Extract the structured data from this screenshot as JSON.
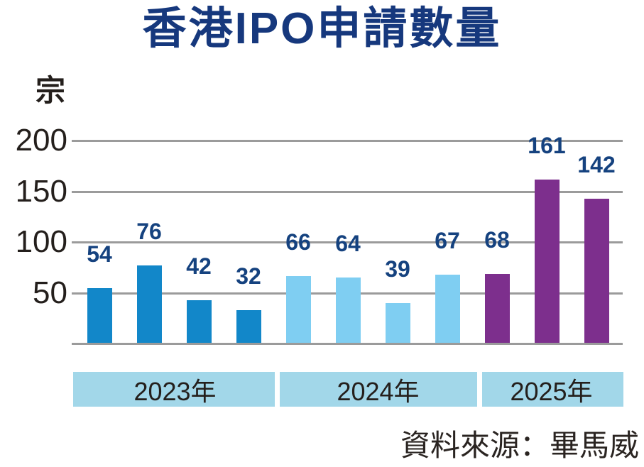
{
  "chart_data": {
    "type": "bar",
    "title": "香港IPO申請數量",
    "unit_label": "宗",
    "source": "資料來源：畢馬威",
    "ylim": [
      0,
      200
    ],
    "yticks": [
      200,
      150,
      100,
      50
    ],
    "grid": true,
    "legend_position": "none",
    "groups": [
      {
        "label": "2023年",
        "color": "#1287c9",
        "values": [
          54,
          76,
          42,
          32
        ]
      },
      {
        "label": "2024年",
        "color": "#7fcef2",
        "values": [
          66,
          64,
          39,
          67
        ]
      },
      {
        "label": "2025年",
        "color": "#7d2f8d",
        "values": [
          68,
          161,
          142
        ]
      }
    ],
    "colors": {
      "title_navy": "#16387d",
      "value_label_navy": "#15427f",
      "gridline_gray": "#9b9b9b",
      "band_fill": "#a2d7e9",
      "axis_text": "#241f1c",
      "source_text": "#2a2421"
    }
  }
}
